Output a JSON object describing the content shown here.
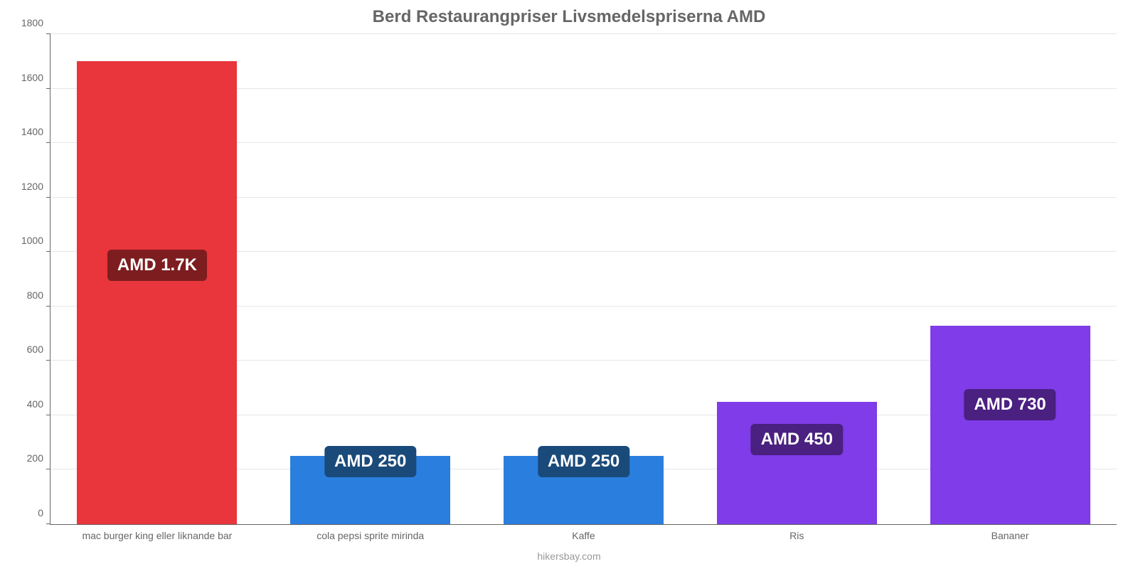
{
  "chart": {
    "type": "bar",
    "title": "Berd Restaurangpriser Livsmedelspriserna AMD",
    "title_fontsize": 24,
    "title_color": "#666666",
    "background_color": "#ffffff",
    "grid_color": "#e6e6e6",
    "axis_color": "#666666",
    "font_family": "Arial",
    "ylim": [
      0,
      1800
    ],
    "ytick_step": 200,
    "yticks": [
      0,
      200,
      400,
      600,
      800,
      1000,
      1200,
      1400,
      1600,
      1800
    ],
    "ytick_fontsize": 14,
    "ytick_color": "#666666",
    "xtick_fontsize": 14,
    "xtick_color": "#666666",
    "bar_width_pct": 15,
    "bar_gap_pct": 5,
    "categories": [
      "mac burger king eller liknande bar",
      "cola pepsi sprite mirinda",
      "Kaffe",
      "Ris",
      "Bananer"
    ],
    "values": [
      1700,
      250,
      250,
      450,
      730
    ],
    "value_labels": [
      "AMD 1.7K",
      "AMD 250",
      "AMD 250",
      "AMD 450",
      "AMD 730"
    ],
    "bar_colors": [
      "#e8363c",
      "#2a7fde",
      "#2a7fde",
      "#7f3ce8",
      "#7f3ce8"
    ],
    "badge_colors": [
      "#7d1d1f",
      "#1a4a7a",
      "#1a4a7a",
      "#4a2080",
      "#4a2080"
    ],
    "badge_fontsize": 24,
    "badge_text_color": "#ffffff",
    "badge_y_values": [
      950,
      230,
      230,
      310,
      440
    ],
    "footer": "hikersbay.com",
    "footer_color": "#999999",
    "footer_fontsize": 14
  }
}
